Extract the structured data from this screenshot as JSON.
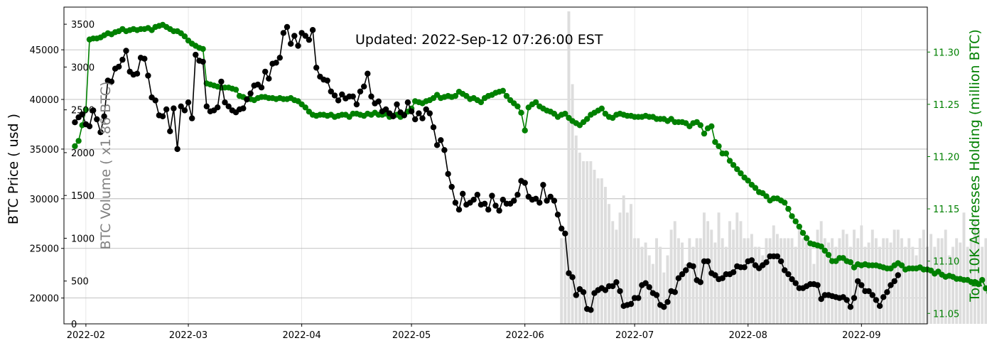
{
  "chart_data": {
    "type": "line",
    "title": "Updated: 2022-Sep-12 07:26:00  EST",
    "ylabel_left": "BTC Price ( usd )",
    "ylabel_volume": "BTC Volume ( x1.86 BTC)",
    "ylabel_right": "Top 10K Addresses Holding (million BTC)",
    "colors": {
      "price": "#000000",
      "holding": "#008000",
      "volume": "#dddddd",
      "volume_label": "#808080",
      "grid": "#b0b0b0"
    },
    "x_range": [
      "2022-01-26",
      "2022-09-19"
    ],
    "x_ticks": [
      "2022-02",
      "2022-03",
      "2022-04",
      "2022-05",
      "2022-06",
      "2022-07",
      "2022-08",
      "2022-09"
    ],
    "y_left": {
      "range": [
        17400,
        49300
      ],
      "ticks": [
        20000,
        25000,
        30000,
        35000,
        40000,
        45000
      ]
    },
    "y_volume": {
      "range": [
        0,
        3700
      ],
      "ticks": [
        0,
        500,
        1000,
        1500,
        2000,
        2500,
        3000,
        3500
      ]
    },
    "y_right": {
      "range": [
        11.04,
        11.343
      ],
      "ticks": [
        11.05,
        11.1,
        11.15,
        11.2,
        11.25,
        11.3
      ]
    },
    "grid": "on",
    "series": [
      {
        "name": "BTC Price",
        "start": "2022-01-29",
        "values": [
          37700,
          38200,
          38500,
          37500,
          37300,
          38900,
          38000,
          36700,
          38300,
          41900,
          41800,
          43100,
          43300,
          44000,
          44900,
          42800,
          42500,
          42600,
          44200,
          44100,
          42400,
          40200,
          39900,
          38400,
          38300,
          39000,
          36800,
          39100,
          35000,
          39300,
          38900,
          39700,
          38100,
          44500,
          43900,
          43800,
          39300,
          38800,
          38900,
          39200,
          41800,
          39700,
          39300,
          38900,
          38700,
          39000,
          39100,
          40000,
          40600,
          41400,
          41500,
          41200,
          42800,
          42100,
          43600,
          43700,
          44200,
          46700,
          47300,
          45600,
          46400,
          45400,
          46700,
          46400,
          46000,
          47000,
          43200,
          42300,
          42000,
          41900,
          40800,
          40400,
          39900,
          40500,
          40100,
          40300,
          40300,
          39500,
          40800,
          41300,
          42600,
          40300,
          39600,
          39800,
          38800,
          39000,
          38600,
          38300,
          39500,
          38700,
          38400,
          39700,
          38800,
          38000,
          38600,
          38100,
          39000,
          38600,
          37200,
          35400,
          35900,
          34900,
          32500,
          31200,
          29600,
          28900,
          30500,
          29400,
          29600,
          29900,
          30400,
          29400,
          29500,
          28900,
          30300,
          29300,
          28800,
          29900,
          29500,
          29500,
          29800,
          30400,
          31800,
          31600,
          30200,
          29900,
          30000,
          29600,
          31400,
          29800,
          30200,
          29800,
          28400,
          27000,
          26500,
          22500,
          22100,
          20300,
          20900,
          20600,
          18900,
          18800,
          20500,
          20800,
          21000,
          20800,
          21200,
          21200,
          21600,
          20700,
          19200,
          19300,
          19400,
          20000,
          20000,
          21300,
          21500,
          21100,
          20500,
          20300,
          19300,
          19100,
          19600,
          20700,
          20600,
          22000,
          22400,
          22800,
          23300,
          23200,
          21800,
          21600,
          23700,
          23700,
          22500,
          22300,
          21900,
          22000,
          22400,
          22400,
          22600,
          23200,
          23100,
          23100,
          23700,
          23800,
          23300,
          23000,
          23300,
          23600,
          24200,
          24200,
          24200,
          23700,
          22800,
          22400,
          21900,
          21500,
          21000,
          21000,
          21200,
          21400,
          21400,
          21300,
          19900,
          20300,
          20300,
          20200,
          20100,
          20000,
          20100,
          19800,
          19100,
          20000,
          21700,
          21300,
          20700,
          20700,
          20300,
          19800,
          19200,
          20100,
          20600,
          21300,
          21700,
          22300
        ]
      },
      {
        "name": "Top 10K Addresses Holding",
        "start": "2022-01-29",
        "values": [
          11.21,
          11.215,
          11.23,
          11.245,
          11.312,
          11.313,
          11.313,
          11.314,
          11.316,
          11.318,
          11.317,
          11.319,
          11.32,
          11.322,
          11.32,
          11.321,
          11.322,
          11.321,
          11.322,
          11.322,
          11.323,
          11.321,
          11.324,
          11.325,
          11.326,
          11.324,
          11.322,
          11.32,
          11.32,
          11.318,
          11.315,
          11.311,
          11.308,
          11.306,
          11.304,
          11.303,
          11.27,
          11.269,
          11.268,
          11.267,
          11.266,
          11.266,
          11.266,
          11.265,
          11.264,
          11.258,
          11.257,
          11.255,
          11.255,
          11.254,
          11.256,
          11.257,
          11.257,
          11.256,
          11.256,
          11.255,
          11.256,
          11.255,
          11.255,
          11.256,
          11.254,
          11.253,
          11.25,
          11.247,
          11.243,
          11.24,
          11.239,
          11.24,
          11.24,
          11.239,
          11.24,
          11.238,
          11.239,
          11.24,
          11.24,
          11.238,
          11.241,
          11.241,
          11.24,
          11.239,
          11.241,
          11.24,
          11.242,
          11.24,
          11.24,
          11.241,
          11.238,
          11.239,
          11.24,
          11.238,
          11.24,
          11.243,
          11.246,
          11.253,
          11.252,
          11.251,
          11.253,
          11.254,
          11.256,
          11.259,
          11.256,
          11.257,
          11.258,
          11.257,
          11.258,
          11.262,
          11.26,
          11.258,
          11.255,
          11.256,
          11.254,
          11.252,
          11.256,
          11.258,
          11.259,
          11.261,
          11.262,
          11.263,
          11.258,
          11.254,
          11.251,
          11.248,
          11.242,
          11.225,
          11.247,
          11.25,
          11.252,
          11.248,
          11.246,
          11.244,
          11.243,
          11.241,
          11.238,
          11.24,
          11.241,
          11.237,
          11.234,
          11.232,
          11.23,
          11.233,
          11.236,
          11.24,
          11.242,
          11.244,
          11.246,
          11.241,
          11.238,
          11.237,
          11.24,
          11.241,
          11.24,
          11.239,
          11.239,
          11.238,
          11.238,
          11.238,
          11.239,
          11.238,
          11.238,
          11.236,
          11.236,
          11.236,
          11.234,
          11.236,
          11.233,
          11.233,
          11.233,
          11.232,
          11.229,
          11.232,
          11.233,
          11.23,
          11.222,
          11.227,
          11.229,
          11.214,
          11.21,
          11.203,
          11.203,
          11.196,
          11.192,
          11.188,
          11.184,
          11.18,
          11.177,
          11.173,
          11.17,
          11.166,
          11.165,
          11.162,
          11.158,
          11.16,
          11.16,
          11.158,
          11.156,
          11.15,
          11.143,
          11.138,
          11.133,
          11.127,
          11.122,
          11.117,
          11.116,
          11.115,
          11.114,
          11.11,
          11.106,
          11.1,
          11.1,
          11.103,
          11.103,
          11.1,
          11.099,
          11.094,
          11.097,
          11.096,
          11.097,
          11.096,
          11.096,
          11.096,
          11.095,
          11.094,
          11.093,
          11.093,
          11.096,
          11.098,
          11.096,
          11.092,
          11.093,
          11.093,
          11.093,
          11.094,
          11.092,
          11.092,
          11.091,
          11.088,
          11.09,
          11.087,
          11.085,
          11.086,
          11.085,
          11.083,
          11.083,
          11.082,
          11.082,
          11.08,
          11.08,
          11.078,
          11.082,
          11.074,
          11.07,
          11.07,
          11.068,
          11.066,
          11.063,
          11.061,
          11.062,
          11.063,
          11.062,
          11.06,
          11.061,
          11.059,
          11.059,
          11.058,
          11.057,
          11.057,
          11.058,
          11.058,
          11.059,
          11.058,
          11.057,
          11.057,
          11.057,
          11.052,
          11.055,
          11.056,
          11.055,
          11.055,
          11.053,
          11.052
        ]
      }
    ],
    "volume": {
      "name": "BTC Volume",
      "start": "2022-06-11",
      "values": [
        1000,
        1000,
        3650,
        2800,
        2200,
        2000,
        1900,
        1900,
        1900,
        1800,
        1700,
        1700,
        1600,
        1400,
        1200,
        1100,
        1300,
        1500,
        1300,
        1400,
        1000,
        1000,
        900,
        950,
        800,
        700,
        1000,
        900,
        600,
        800,
        1100,
        1200,
        1000,
        950,
        700,
        1000,
        900,
        1000,
        1000,
        1300,
        1200,
        1100,
        950,
        1300,
        1000,
        900,
        1200,
        1100,
        1300,
        1200,
        1000,
        1000,
        1050,
        900,
        900,
        800,
        1000,
        1000,
        1150,
        1050,
        1000,
        1000,
        1000,
        1000,
        900,
        1100,
        1000,
        1050,
        900,
        700,
        1100,
        1200,
        1000,
        950,
        1000,
        900,
        1000,
        1100,
        1050,
        900,
        1100,
        1000,
        1150,
        900,
        950,
        1100,
        1000,
        900,
        1000,
        1000,
        950,
        1100,
        1100,
        1000,
        900,
        1000,
        900,
        800,
        1000,
        1100,
        900,
        1050,
        900,
        1000,
        1000,
        1100,
        800,
        900,
        1000,
        950,
        1300,
        900,
        1000,
        1200,
        1100,
        900,
        1000,
        850,
        800,
        900,
        1100,
        900,
        950,
        800,
        900,
        1000,
        900,
        1100,
        1200
      ]
    }
  }
}
